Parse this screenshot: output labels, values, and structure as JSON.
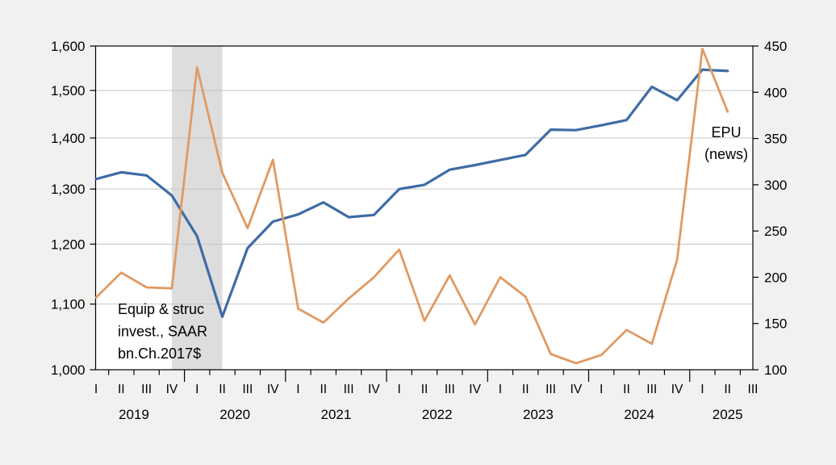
{
  "chart_data": {
    "type": "line",
    "title": "",
    "background": "#f1f1f0",
    "plot_background": "#ffffff",
    "grid": "horizontal gridlines at left-axis ticks",
    "grid_color": "#c6c6c6",
    "x_axis": {
      "years": [
        {
          "label": "2019",
          "quarters": [
            "I",
            "II",
            "III",
            "IV"
          ]
        },
        {
          "label": "2020",
          "quarters": [
            "I",
            "II",
            "III",
            "IV"
          ]
        },
        {
          "label": "2021",
          "quarters": [
            "I",
            "II",
            "III",
            "IV"
          ]
        },
        {
          "label": "2022",
          "quarters": [
            "I",
            "II",
            "III",
            "IV"
          ]
        },
        {
          "label": "2023",
          "quarters": [
            "I",
            "II",
            "III",
            "IV"
          ]
        },
        {
          "label": "2024",
          "quarters": [
            "I",
            "II",
            "III",
            "IV"
          ]
        },
        {
          "label": "2025",
          "quarters": [
            "I",
            "II",
            "III"
          ]
        }
      ]
    },
    "left_axis": {
      "scale": "log",
      "range": [
        1000,
        1600
      ],
      "tick_values": [
        1600,
        1500,
        1400,
        1300,
        1200,
        1100,
        1000
      ],
      "tick_labels": [
        "1,600",
        "1,500",
        "1,400",
        "1,300",
        "1,200",
        "1,100",
        "1,000"
      ]
    },
    "right_axis": {
      "scale": "linear",
      "range": [
        100,
        450
      ],
      "tick_values": [
        450,
        400,
        350,
        300,
        250,
        200,
        150,
        100
      ],
      "tick_labels": [
        "450",
        "400",
        "350",
        "300",
        "250",
        "200",
        "150",
        "100"
      ]
    },
    "recession_band": {
      "start_quarter": "2019Q4",
      "end_quarter": "2020Q2",
      "start_index": 3,
      "end_index": 5,
      "color": "#dddddd"
    },
    "series": [
      {
        "name": "Equip & struc invest., SAAR bn.Ch.2017$",
        "axis": "left",
        "color": "#3E6CA5",
        "stroke_width": 3.2,
        "quarters": [
          "2019Q1",
          "2019Q2",
          "2019Q3",
          "2019Q4",
          "2020Q1",
          "2020Q2",
          "2020Q3",
          "2020Q4",
          "2021Q1",
          "2021Q2",
          "2021Q3",
          "2021Q4",
          "2022Q1",
          "2022Q2",
          "2022Q3",
          "2022Q4",
          "2023Q1",
          "2023Q2",
          "2023Q3",
          "2023Q4",
          "2024Q1",
          "2024Q2",
          "2024Q3",
          "2024Q4",
          "2025Q1",
          "2025Q2"
        ],
        "values": [
          1319,
          1332,
          1326,
          1288,
          1214,
          1080,
          1193,
          1240,
          1253,
          1275,
          1248,
          1252,
          1300,
          1308,
          1337,
          1346,
          1356,
          1366,
          1417,
          1416,
          1426,
          1437,
          1508,
          1479,
          1546,
          1543
        ]
      },
      {
        "name": "EPU (news)",
        "axis": "right",
        "color": "#E09A63",
        "stroke_width": 2.8,
        "quarters": [
          "2019Q1",
          "2019Q2",
          "2019Q3",
          "2019Q4",
          "2020Q1",
          "2020Q2",
          "2020Q3",
          "2020Q4",
          "2021Q1",
          "2021Q2",
          "2021Q3",
          "2021Q4",
          "2022Q1",
          "2022Q2",
          "2022Q3",
          "2022Q4",
          "2023Q1",
          "2023Q2",
          "2023Q3",
          "2023Q4",
          "2024Q1",
          "2024Q2",
          "2024Q3",
          "2024Q4",
          "2025Q1",
          "2025Q2"
        ],
        "values": [
          178,
          205,
          189,
          188,
          427,
          313,
          253,
          327,
          166,
          151,
          177,
          200,
          230,
          153,
          202,
          149,
          200,
          179,
          117,
          107,
          116,
          143,
          128,
          219,
          447,
          379
        ]
      }
    ],
    "annotations": [
      {
        "id": "investment-label",
        "lines": [
          "Equip & struc",
          "invest., SAAR",
          "bn.Ch.2017$"
        ],
        "color": "#1B5EA6"
      },
      {
        "id": "epu-label",
        "lines": [
          "EPU",
          "(news)"
        ],
        "color": "#C8861B"
      }
    ]
  }
}
